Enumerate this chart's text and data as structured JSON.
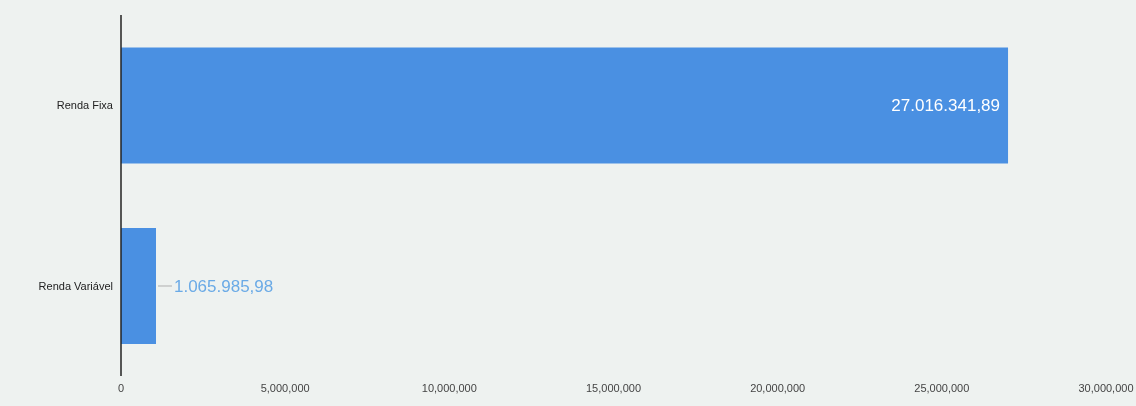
{
  "chart_data": {
    "type": "bar",
    "orientation": "horizontal",
    "categories": [
      "Renda Fixa",
      "Renda Variável"
    ],
    "values": [
      27016341.89,
      1065985.98
    ],
    "value_labels": [
      "27.016.341,89",
      "1.065.985,98"
    ],
    "color": "#4a90e2",
    "xlim": [
      0,
      30000000
    ],
    "xticks": [
      0,
      {
        "value": 5000000,
        "label": "5,000,000"
      },
      {
        "value": 10000000,
        "label": "10,000,000"
      },
      {
        "value": 15000000,
        "label": "15,000,000"
      },
      {
        "value": 20000000,
        "label": "20,000,000"
      },
      {
        "value": 25000000,
        "label": "25,000,000"
      },
      {
        "value": 30000000,
        "label": "30,000,000"
      }
    ],
    "grid": false
  }
}
